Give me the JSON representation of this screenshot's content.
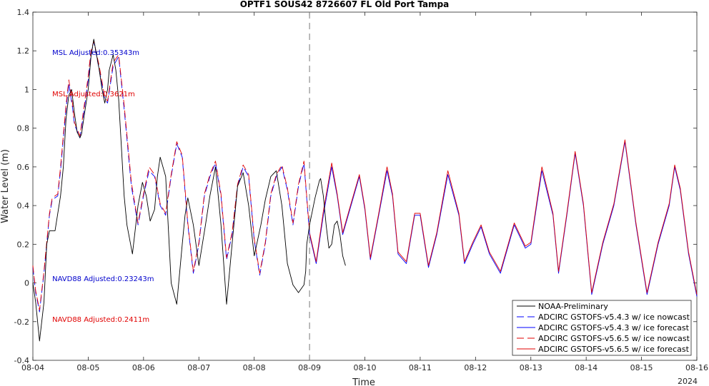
{
  "chart_data": {
    "type": "line",
    "title": "OPTF1 SOUS42 8726607 FL Old Port Tampa",
    "xlabel": "Time",
    "ylabel": "Water Level (m)",
    "x_year_label": "2024",
    "xlim": [
      0,
      12
    ],
    "ylim": [
      -0.4,
      1.4
    ],
    "x_ticks": [
      "08-04",
      "08-05",
      "08-06",
      "08-07",
      "08-08",
      "08-09",
      "08-10",
      "08-11",
      "08-12",
      "08-13",
      "08-14",
      "08-15",
      "08-16"
    ],
    "y_ticks": [
      "-0.4",
      "-0.2",
      "0",
      "0.2",
      "0.4",
      "0.6",
      "0.8",
      "1",
      "1.2",
      "1.4"
    ],
    "nowcast_forecast_divider_x": 5.0,
    "annotations": [
      {
        "text": "MSL Adjusted:0.35343m",
        "color": "#0000cc",
        "x": 0.35,
        "y": 1.19
      },
      {
        "text": "MSL Adjusted:0.3621m",
        "color": "#e00000",
        "x": 0.35,
        "y": 0.975
      },
      {
        "text": "NAVD88 Adjusted:0.23243m",
        "color": "#0000cc",
        "x": 0.35,
        "y": 0.02
      },
      {
        "text": "NAVD88 Adjusted:0.2411m",
        "color": "#e00000",
        "x": 0.35,
        "y": -0.19
      }
    ],
    "legend_position": "bottom-right",
    "series": [
      {
        "name": "NOAA-Preliminary",
        "color": "#000000",
        "style": "solid",
        "x": [
          0,
          0.05,
          0.12,
          0.2,
          0.25,
          0.3,
          0.4,
          0.5,
          0.55,
          0.6,
          0.65,
          0.7,
          0.75,
          0.8,
          0.85,
          0.88,
          0.92,
          1.0,
          1.05,
          1.1,
          1.2,
          1.25,
          1.3,
          1.35,
          1.38,
          1.45,
          1.5,
          1.55,
          1.6,
          1.65,
          1.7,
          1.8,
          1.9,
          1.98,
          2.05,
          2.12,
          2.2,
          2.25,
          2.3,
          2.4,
          2.5,
          2.6,
          2.7,
          2.75,
          2.8,
          2.9,
          3.0,
          3.12,
          3.2,
          3.3,
          3.4,
          3.5,
          3.6,
          3.7,
          3.8,
          3.9,
          4.0,
          4.12,
          4.2,
          4.3,
          4.4,
          4.5,
          4.6,
          4.7,
          4.8,
          4.9,
          4.93,
          4.95,
          5.0,
          5.1,
          5.18,
          5.2,
          5.25,
          5.3,
          5.35,
          5.4,
          5.45,
          5.5,
          5.55,
          5.6,
          5.65
        ],
        "y": [
          0.0,
          -0.1,
          -0.3,
          -0.1,
          0.2,
          0.27,
          0.27,
          0.45,
          0.6,
          0.85,
          0.97,
          1.0,
          0.88,
          0.78,
          0.75,
          0.77,
          0.85,
          1.0,
          1.17,
          1.26,
          1.1,
          1.0,
          0.93,
          1.0,
          1.1,
          1.18,
          1.1,
          0.95,
          0.7,
          0.45,
          0.3,
          0.15,
          0.4,
          0.52,
          0.45,
          0.32,
          0.38,
          0.55,
          0.65,
          0.55,
          0.0,
          -0.11,
          0.2,
          0.35,
          0.44,
          0.3,
          0.09,
          0.3,
          0.45,
          0.6,
          0.3,
          -0.11,
          0.2,
          0.5,
          0.57,
          0.4,
          0.14,
          0.3,
          0.43,
          0.55,
          0.58,
          0.4,
          0.1,
          -0.01,
          -0.05,
          -0.01,
          0.06,
          0.2,
          0.3,
          0.44,
          0.53,
          0.54,
          0.45,
          0.3,
          0.18,
          0.2,
          0.3,
          0.32,
          0.25,
          0.14,
          0.09
        ]
      },
      {
        "name": "ADCIRC GSTOFS-v5.4.3 w/ ice nowcast",
        "color": "#0000ff",
        "style": "dash",
        "x": [
          0,
          0.05,
          0.12,
          0.2,
          0.3,
          0.35,
          0.4,
          0.45,
          0.5,
          0.6,
          0.65,
          0.72,
          0.75,
          0.85,
          0.92,
          1.0,
          1.05,
          1.1,
          1.2,
          1.3,
          1.35,
          1.45,
          1.55,
          1.65,
          1.78,
          1.9,
          2.0,
          2.1,
          2.2,
          2.3,
          2.4,
          2.5,
          2.6,
          2.7,
          2.8,
          2.9,
          3.0,
          3.1,
          3.2,
          3.3,
          3.4,
          3.5,
          3.6,
          3.7,
          3.8,
          3.9,
          4.0,
          4.1,
          4.2,
          4.3,
          4.4,
          4.5,
          4.6,
          4.7,
          4.8,
          4.9,
          5.0
        ],
        "y": [
          0.08,
          -0.05,
          -0.15,
          0.05,
          0.35,
          0.43,
          0.44,
          0.45,
          0.58,
          0.9,
          1.03,
          0.9,
          0.82,
          0.75,
          0.88,
          1.05,
          1.18,
          1.25,
          1.1,
          0.95,
          0.93,
          1.12,
          1.17,
          0.9,
          0.5,
          0.3,
          0.45,
          0.58,
          0.55,
          0.4,
          0.35,
          0.55,
          0.72,
          0.65,
          0.3,
          0.05,
          0.2,
          0.45,
          0.55,
          0.62,
          0.45,
          0.12,
          0.25,
          0.5,
          0.6,
          0.55,
          0.22,
          0.04,
          0.2,
          0.45,
          0.55,
          0.6,
          0.48,
          0.3,
          0.5,
          0.62,
          0.25
        ]
      },
      {
        "name": "ADCIRC GSTOFS-v5.4.3 w/ ice forecast",
        "color": "#0000ff",
        "style": "solid",
        "x": [
          5.0,
          5.12,
          5.25,
          5.4,
          5.5,
          5.6,
          5.75,
          5.9,
          6.0,
          6.1,
          6.25,
          6.4,
          6.5,
          6.6,
          6.75,
          6.9,
          7.0,
          7.15,
          7.3,
          7.5,
          7.7,
          7.8,
          7.95,
          8.1,
          8.25,
          8.45,
          8.7,
          8.9,
          9.0,
          9.2,
          9.4,
          9.5,
          9.65,
          9.8,
          9.95,
          10.1,
          10.3,
          10.5,
          10.7,
          10.9,
          11.1,
          11.3,
          11.5,
          11.6,
          11.7,
          11.85,
          12.0
        ],
        "y": [
          0.25,
          0.1,
          0.35,
          0.6,
          0.45,
          0.25,
          0.4,
          0.55,
          0.38,
          0.12,
          0.35,
          0.58,
          0.45,
          0.15,
          0.1,
          0.35,
          0.35,
          0.08,
          0.25,
          0.56,
          0.35,
          0.1,
          0.2,
          0.29,
          0.15,
          0.05,
          0.3,
          0.18,
          0.2,
          0.58,
          0.35,
          0.05,
          0.35,
          0.67,
          0.4,
          -0.06,
          0.2,
          0.4,
          0.73,
          0.3,
          -0.06,
          0.2,
          0.4,
          0.6,
          0.48,
          0.15,
          -0.07
        ]
      },
      {
        "name": "ADCIRC GSTOFS-v5.6.5 w/ ice nowcast",
        "color": "#e00000",
        "style": "dash",
        "x": [
          0,
          0.05,
          0.12,
          0.2,
          0.3,
          0.35,
          0.4,
          0.45,
          0.5,
          0.6,
          0.65,
          0.72,
          0.75,
          0.85,
          0.92,
          1.0,
          1.05,
          1.1,
          1.2,
          1.3,
          1.35,
          1.45,
          1.55,
          1.65,
          1.78,
          1.9,
          2.0,
          2.1,
          2.2,
          2.3,
          2.4,
          2.5,
          2.6,
          2.7,
          2.8,
          2.9,
          3.0,
          3.1,
          3.2,
          3.3,
          3.4,
          3.5,
          3.6,
          3.7,
          3.8,
          3.9,
          4.0,
          4.1,
          4.2,
          4.3,
          4.4,
          4.5,
          4.6,
          4.7,
          4.8,
          4.9,
          5.0
        ],
        "y": [
          0.09,
          -0.04,
          -0.14,
          0.06,
          0.36,
          0.44,
          0.45,
          0.46,
          0.6,
          0.92,
          1.05,
          0.92,
          0.83,
          0.76,
          0.9,
          1.07,
          1.2,
          1.25,
          1.12,
          0.96,
          0.94,
          1.14,
          1.18,
          0.92,
          0.52,
          0.31,
          0.46,
          0.6,
          0.56,
          0.41,
          0.36,
          0.56,
          0.73,
          0.66,
          0.31,
          0.06,
          0.21,
          0.46,
          0.56,
          0.63,
          0.46,
          0.13,
          0.26,
          0.51,
          0.61,
          0.56,
          0.23,
          0.05,
          0.21,
          0.46,
          0.56,
          0.61,
          0.49,
          0.31,
          0.51,
          0.63,
          0.26
        ]
      },
      {
        "name": "ADCIRC GSTOFS-v5.6.5 w/ ice forecast",
        "color": "#e00000",
        "style": "solid",
        "x": [
          5.0,
          5.12,
          5.25,
          5.4,
          5.5,
          5.6,
          5.75,
          5.9,
          6.0,
          6.1,
          6.25,
          6.4,
          6.5,
          6.6,
          6.75,
          6.9,
          7.0,
          7.15,
          7.3,
          7.5,
          7.7,
          7.8,
          7.95,
          8.1,
          8.25,
          8.45,
          8.7,
          8.9,
          9.0,
          9.2,
          9.4,
          9.5,
          9.65,
          9.8,
          9.95,
          10.1,
          10.3,
          10.5,
          10.7,
          10.9,
          11.1,
          11.3,
          11.5,
          11.6,
          11.7,
          11.85,
          12.0
        ],
        "y": [
          0.26,
          0.11,
          0.37,
          0.62,
          0.46,
          0.26,
          0.41,
          0.56,
          0.39,
          0.13,
          0.36,
          0.6,
          0.46,
          0.16,
          0.11,
          0.36,
          0.36,
          0.09,
          0.26,
          0.58,
          0.36,
          0.11,
          0.21,
          0.3,
          0.16,
          0.06,
          0.31,
          0.19,
          0.21,
          0.6,
          0.36,
          0.06,
          0.36,
          0.68,
          0.41,
          -0.05,
          0.21,
          0.41,
          0.74,
          0.31,
          -0.05,
          0.21,
          0.41,
          0.61,
          0.49,
          0.16,
          -0.06
        ]
      }
    ]
  }
}
